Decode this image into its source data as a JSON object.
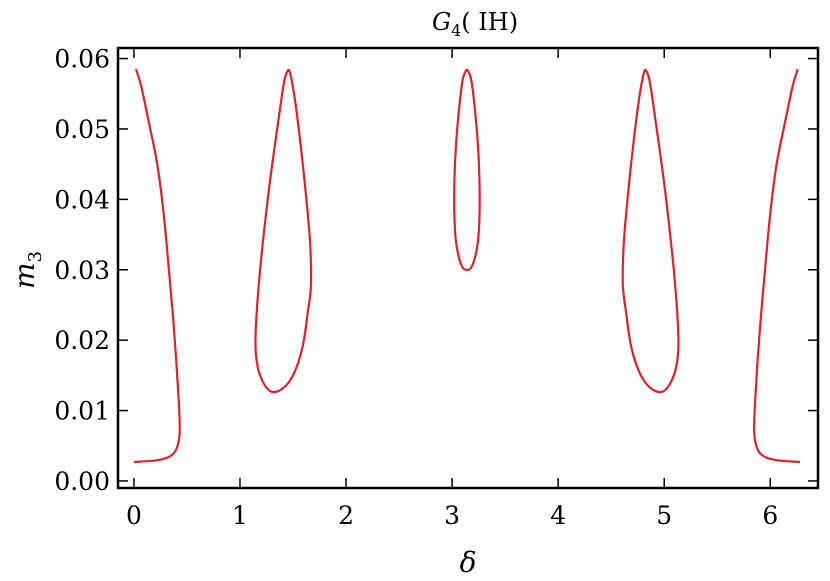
{
  "chart_data": {
    "type": "line",
    "title": {
      "main": "G",
      "sub": "4",
      "suffix": "( IH)"
    },
    "xlabel": "δ",
    "ylabel": {
      "main": "m",
      "sub": "3"
    },
    "xlim": [
      -0.15,
      6.45
    ],
    "ylim": [
      -0.001,
      0.0615
    ],
    "x_ticks": [
      0,
      1,
      2,
      3,
      4,
      5,
      6
    ],
    "x_tick_labels": [
      "0",
      "1",
      "2",
      "3",
      "4",
      "5",
      "6"
    ],
    "y_ticks": [
      0.0,
      0.01,
      0.02,
      0.03,
      0.04,
      0.05,
      0.06
    ],
    "y_tick_labels": [
      "0.00",
      "0.01",
      "0.02",
      "0.03",
      "0.04",
      "0.05",
      "0.06"
    ],
    "grid": false,
    "series_color": "#e0202a",
    "series": [
      {
        "x": [
          0.02,
          0.07,
          0.14,
          0.22,
          0.28,
          0.33,
          0.37,
          0.4,
          0.42,
          0.43,
          0.43,
          0.4,
          0.34,
          0.24,
          0.12,
          0.0
        ],
        "y": [
          0.0585,
          0.056,
          0.051,
          0.045,
          0.038,
          0.03,
          0.023,
          0.017,
          0.012,
          0.009,
          0.0065,
          0.0045,
          0.0035,
          0.003,
          0.0028,
          0.0027
        ]
      },
      {
        "x": [
          1.46,
          1.42,
          1.36,
          1.27,
          1.19,
          1.15,
          1.15,
          1.19,
          1.28,
          1.39,
          1.5,
          1.59,
          1.64,
          1.67,
          1.66,
          1.62,
          1.57,
          1.52,
          1.48,
          1.46
        ],
        "y": [
          0.0585,
          0.057,
          0.051,
          0.041,
          0.03,
          0.022,
          0.018,
          0.015,
          0.0128,
          0.013,
          0.015,
          0.019,
          0.024,
          0.028,
          0.034,
          0.041,
          0.048,
          0.054,
          0.0575,
          0.0585
        ]
      },
      {
        "x": [
          3.14,
          3.1,
          3.06,
          3.03,
          3.02,
          3.03,
          3.06,
          3.1,
          3.14,
          3.18,
          3.22,
          3.25,
          3.26,
          3.25,
          3.22,
          3.18,
          3.14
        ],
        "y": [
          0.0585,
          0.057,
          0.052,
          0.046,
          0.04,
          0.035,
          0.032,
          0.0303,
          0.03,
          0.0303,
          0.032,
          0.035,
          0.04,
          0.046,
          0.052,
          0.057,
          0.0585
        ]
      },
      {
        "x": [
          4.82,
          4.86,
          4.92,
          5.01,
          5.09,
          5.13,
          5.13,
          5.09,
          5.0,
          4.89,
          4.78,
          4.69,
          4.64,
          4.61,
          4.62,
          4.66,
          4.71,
          4.76,
          4.8,
          4.82
        ],
        "y": [
          0.0585,
          0.057,
          0.051,
          0.041,
          0.03,
          0.022,
          0.018,
          0.015,
          0.0128,
          0.013,
          0.015,
          0.019,
          0.024,
          0.028,
          0.034,
          0.041,
          0.048,
          0.054,
          0.0575,
          0.0585
        ]
      },
      {
        "x": [
          6.26,
          6.21,
          6.14,
          6.06,
          6.0,
          5.95,
          5.91,
          5.88,
          5.86,
          5.85,
          5.85,
          5.88,
          5.94,
          6.04,
          6.16,
          6.28
        ],
        "y": [
          0.0585,
          0.056,
          0.051,
          0.045,
          0.038,
          0.03,
          0.023,
          0.017,
          0.012,
          0.009,
          0.0065,
          0.0045,
          0.0035,
          0.003,
          0.0028,
          0.0027
        ]
      }
    ]
  }
}
